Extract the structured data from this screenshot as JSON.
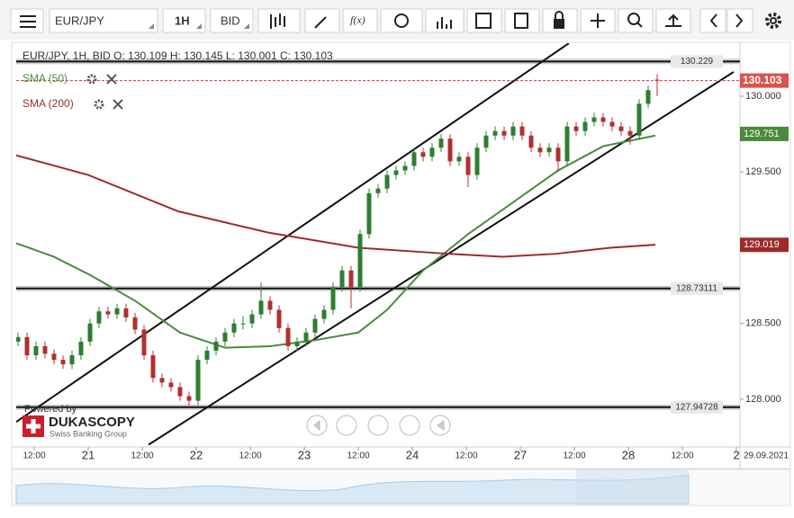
{
  "toolbar": {
    "symbol": "EUR/JPY",
    "period": "1H",
    "side": "BID",
    "function": "f(x)"
  },
  "logo": {
    "powered": "Powered by",
    "brand": "DUKASCOPY",
    "tagline": "Swiss Banking Group"
  },
  "chart_data": {
    "type": "candlestick",
    "header": "EUR/JPY, 1H, BID   O: 130.109 H: 130.145 L: 130.001 C: 130.103",
    "up_color": "#2e7d32",
    "down_color": "#b03030",
    "x": [
      -15.6,
      -13.6,
      -11.6,
      -9.6,
      -7.6,
      -5.6,
      -3.6,
      -1.6,
      0.4,
      2.4,
      4.4,
      6.4,
      8.4,
      10.4,
      12.4,
      14.4,
      16.4,
      18.4,
      20.4,
      22.4,
      24.4,
      26.4,
      28.4,
      30.4,
      32.4,
      34.4,
      36.4,
      38.4,
      40.4,
      42.4,
      44.4,
      46.4,
      48.4,
      50.4,
      52.4,
      54.4,
      56.4,
      58.4,
      60.4,
      62.4,
      64.4,
      66.4,
      68.4,
      70.4,
      72.4,
      74.4,
      76.4,
      78.4,
      80.4,
      82.4,
      84.4,
      86.4,
      88.4,
      90.4,
      92.4,
      94.4,
      96.4,
      98.4,
      100.4,
      102.4,
      104.4,
      106.4,
      108.4,
      110.4,
      112.4,
      114.4,
      116.4,
      118.4,
      120.4,
      122.4,
      124.4,
      126.4
    ],
    "ohlc": [
      [
        128.38,
        128.44,
        128.35,
        128.41
      ],
      [
        128.41,
        128.44,
        128.26,
        128.29
      ],
      [
        128.29,
        128.38,
        128.26,
        128.35
      ],
      [
        128.35,
        128.38,
        128.27,
        128.3
      ],
      [
        128.3,
        128.33,
        128.23,
        128.26
      ],
      [
        128.26,
        128.29,
        128.2,
        128.23
      ],
      [
        128.23,
        128.32,
        128.2,
        128.29
      ],
      [
        128.29,
        128.41,
        128.26,
        128.38
      ],
      [
        128.38,
        128.53,
        128.35,
        128.5
      ],
      [
        128.5,
        128.61,
        128.47,
        128.58
      ],
      [
        128.58,
        128.61,
        128.53,
        128.56
      ],
      [
        128.56,
        128.63,
        128.53,
        128.6
      ],
      [
        128.6,
        128.63,
        128.51,
        128.54
      ],
      [
        128.54,
        128.57,
        128.43,
        128.46
      ],
      [
        128.46,
        128.49,
        128.26,
        128.29
      ],
      [
        128.29,
        128.32,
        128.11,
        128.14
      ],
      [
        128.14,
        128.17,
        128.08,
        128.11
      ],
      [
        128.11,
        128.14,
        128.05,
        128.08
      ],
      [
        128.08,
        128.11,
        127.99,
        128.02
      ],
      [
        128.02,
        128.05,
        127.96,
        127.99
      ],
      [
        127.99,
        128.29,
        127.96,
        128.26
      ],
      [
        128.26,
        128.35,
        128.23,
        128.32
      ],
      [
        128.32,
        128.41,
        128.29,
        128.38
      ],
      [
        128.38,
        128.47,
        128.35,
        128.44
      ],
      [
        128.44,
        128.53,
        128.41,
        128.5
      ],
      [
        128.5,
        128.55,
        128.46,
        128.5
      ],
      [
        128.5,
        128.59,
        128.47,
        128.56
      ],
      [
        128.56,
        128.77,
        128.53,
        128.65
      ],
      [
        128.65,
        128.68,
        128.56,
        128.59
      ],
      [
        128.59,
        128.62,
        128.44,
        128.47
      ],
      [
        128.47,
        128.5,
        128.32,
        128.35
      ],
      [
        128.35,
        128.41,
        128.32,
        128.38
      ],
      [
        128.38,
        128.47,
        128.35,
        128.44
      ],
      [
        128.44,
        128.56,
        128.41,
        128.53
      ],
      [
        128.53,
        128.62,
        128.5,
        128.59
      ],
      [
        128.59,
        128.77,
        128.56,
        128.74
      ],
      [
        128.74,
        128.88,
        128.71,
        128.85
      ],
      [
        128.85,
        128.88,
        128.6,
        128.74
      ],
      [
        128.74,
        129.12,
        128.71,
        129.09
      ],
      [
        129.09,
        129.39,
        129.06,
        129.36
      ],
      [
        129.36,
        129.42,
        129.33,
        129.39
      ],
      [
        129.39,
        129.51,
        129.36,
        129.48
      ],
      [
        129.48,
        129.54,
        129.45,
        129.51
      ],
      [
        129.51,
        129.57,
        129.48,
        129.54
      ],
      [
        129.54,
        129.66,
        129.51,
        129.63
      ],
      [
        129.63,
        129.66,
        129.57,
        129.6
      ],
      [
        129.6,
        129.69,
        129.57,
        129.66
      ],
      [
        129.66,
        129.75,
        129.63,
        129.72
      ],
      [
        129.72,
        129.75,
        129.54,
        129.57
      ],
      [
        129.57,
        129.63,
        129.54,
        129.6
      ],
      [
        129.6,
        129.63,
        129.4,
        129.48
      ],
      [
        129.48,
        129.69,
        129.45,
        129.66
      ],
      [
        129.66,
        129.77,
        129.63,
        129.74
      ],
      [
        129.74,
        129.8,
        129.71,
        129.77
      ],
      [
        129.77,
        129.8,
        129.71,
        129.74
      ],
      [
        129.74,
        129.83,
        129.71,
        129.8
      ],
      [
        129.8,
        129.83,
        129.71,
        129.74
      ],
      [
        129.74,
        129.77,
        129.63,
        129.66
      ],
      [
        129.66,
        129.69,
        129.6,
        129.63
      ],
      [
        129.63,
        129.69,
        129.6,
        129.66
      ],
      [
        129.66,
        129.69,
        129.5,
        129.57
      ],
      [
        129.57,
        129.83,
        129.54,
        129.8
      ],
      [
        129.8,
        129.83,
        129.74,
        129.77
      ],
      [
        129.77,
        129.86,
        129.74,
        129.83
      ],
      [
        129.83,
        129.89,
        129.8,
        129.86
      ],
      [
        129.86,
        129.89,
        129.8,
        129.83
      ],
      [
        129.83,
        129.86,
        129.77,
        129.8
      ],
      [
        129.8,
        129.83,
        129.74,
        129.77
      ],
      [
        129.77,
        129.8,
        129.68,
        129.74
      ],
      [
        129.74,
        129.98,
        129.71,
        129.95
      ],
      [
        129.95,
        130.07,
        129.92,
        130.04
      ],
      [
        130.109,
        130.145,
        130.001,
        130.103
      ]
    ],
    "last_price": 130.103,
    "series": [
      {
        "name": "SMA (50)",
        "color": "#4a8a3c",
        "last_value": 129.751,
        "x": [
          -16,
          -7.6,
          0.4,
          10.4,
          20.4,
          30.4,
          40.4,
          50.4,
          60,
          66.4,
          74.4,
          84.4,
          94.4,
          104.4,
          114.4,
          126
        ],
        "values": [
          129.03,
          128.94,
          128.82,
          128.65,
          128.44,
          128.34,
          128.35,
          128.39,
          128.44,
          128.59,
          128.85,
          129.09,
          129.3,
          129.51,
          129.67,
          129.74
        ]
      },
      {
        "name": "SMA (200)",
        "color": "#9e2a2a",
        "last_value": 129.019,
        "x": [
          -16,
          0,
          20,
          40,
          60,
          80,
          92,
          104,
          116,
          126
        ],
        "values": [
          129.61,
          129.48,
          129.24,
          129.1,
          129.0,
          128.96,
          128.94,
          128.96,
          129.0,
          129.02
        ]
      }
    ],
    "horizontal_lines": [
      130.229,
      128.73111,
      127.94728
    ],
    "trend_lines": [
      {
        "x": [
          -16,
          106.8
        ],
        "y": [
          127.85,
          130.35
        ]
      },
      {
        "x": [
          13.4,
          143.4
        ],
        "y": [
          127.7,
          130.16
        ]
      }
    ],
    "xlim": [
      -16,
      144.8
    ],
    "xticks": [
      {
        "value": -12,
        "label": "12:00"
      },
      {
        "value": 0,
        "label": "21"
      },
      {
        "value": 12,
        "label": "12:00"
      },
      {
        "value": 24,
        "label": "22"
      },
      {
        "value": 36,
        "label": "12:00"
      },
      {
        "value": 48,
        "label": "23"
      },
      {
        "value": 60,
        "label": "12:00"
      },
      {
        "value": 72,
        "label": "24"
      },
      {
        "value": 84,
        "label": "12:00"
      },
      {
        "value": 96,
        "label": "27"
      },
      {
        "value": 108,
        "label": "12:00"
      },
      {
        "value": 120,
        "label": "28"
      },
      {
        "value": 132,
        "label": "12:00"
      },
      {
        "value": 144,
        "label": "2"
      }
    ],
    "date_label": "29.09.2021",
    "ylim": [
      127.685,
      130.35
    ],
    "yticks": [
      {
        "value": 128,
        "label": "128.000"
      },
      {
        "value": 128.5,
        "label": "128.500"
      },
      {
        "value": 129.5,
        "label": "129.500"
      },
      {
        "value": 130,
        "label": "130.000"
      }
    ]
  }
}
